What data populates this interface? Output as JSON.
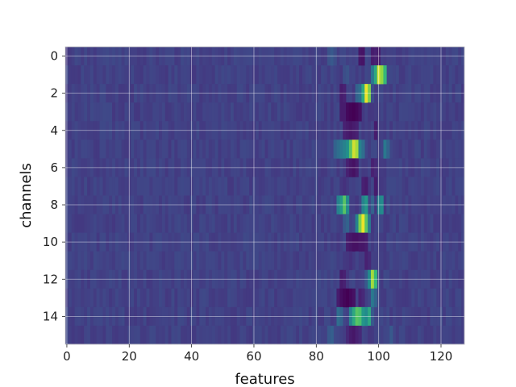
{
  "chart_data": {
    "type": "heatmap",
    "xlabel": "features",
    "ylabel": "channels",
    "x_ticks": [
      0,
      20,
      40,
      60,
      80,
      100,
      120
    ],
    "y_ticks": [
      0,
      2,
      4,
      6,
      8,
      10,
      12,
      14
    ],
    "x_range": [
      0,
      128
    ],
    "y_range": [
      0,
      16
    ],
    "grid": true,
    "colormap": "viridis",
    "background_color": "#3b528b",
    "value_range": [
      0,
      1
    ],
    "hot_cells": [
      {
        "channel": 0,
        "features": [
          [
            84,
            0.32
          ],
          [
            85,
            0.35
          ],
          [
            86,
            0.3
          ],
          [
            94,
            0.08
          ],
          [
            95,
            0.07
          ],
          [
            98,
            0.1
          ],
          [
            99,
            0.12
          ],
          [
            100,
            0.1
          ]
        ]
      },
      {
        "channel": 1,
        "features": [
          [
            89,
            0.3
          ],
          [
            90,
            0.32
          ],
          [
            98,
            0.5
          ],
          [
            99,
            0.7
          ],
          [
            100,
            0.95
          ],
          [
            101,
            0.88
          ],
          [
            102,
            0.75
          ]
        ]
      },
      {
        "channel": 2,
        "features": [
          [
            88,
            0.1
          ],
          [
            89,
            0.12
          ],
          [
            93,
            0.4
          ],
          [
            94,
            0.45
          ],
          [
            95,
            0.7
          ],
          [
            96,
            0.98
          ],
          [
            97,
            0.85
          ],
          [
            98,
            0.3
          ]
        ]
      },
      {
        "channel": 3,
        "features": [
          [
            88,
            0.1
          ],
          [
            89,
            0.1
          ],
          [
            90,
            0.03
          ],
          [
            91,
            0.01
          ],
          [
            92,
            0.0
          ],
          [
            93,
            0.02
          ],
          [
            94,
            0.06
          ],
          [
            97,
            0.2
          ]
        ]
      },
      {
        "channel": 4,
        "features": [
          [
            89,
            0.12
          ],
          [
            90,
            0.1
          ],
          [
            91,
            0.08
          ],
          [
            92,
            0.1
          ],
          [
            93,
            0.12
          ],
          [
            99,
            0.1
          ]
        ]
      },
      {
        "channel": 5,
        "features": [
          [
            86,
            0.4
          ],
          [
            87,
            0.45
          ],
          [
            88,
            0.5
          ],
          [
            89,
            0.55
          ],
          [
            90,
            0.62
          ],
          [
            91,
            0.8
          ],
          [
            92,
            0.95
          ],
          [
            93,
            0.9
          ],
          [
            94,
            0.55
          ],
          [
            95,
            0.45
          ],
          [
            102,
            0.5
          ],
          [
            103,
            0.4
          ]
        ]
      },
      {
        "channel": 6,
        "features": [
          [
            90,
            0.12
          ],
          [
            91,
            0.08
          ],
          [
            92,
            0.06
          ],
          [
            93,
            0.1
          ],
          [
            98,
            0.12
          ],
          [
            99,
            0.15
          ]
        ]
      },
      {
        "channel": 7,
        "features": [
          [
            88,
            0.2
          ],
          [
            89,
            0.18
          ],
          [
            95,
            0.12
          ],
          [
            96,
            0.1
          ],
          [
            99,
            0.1
          ]
        ]
      },
      {
        "channel": 8,
        "features": [
          [
            87,
            0.55
          ],
          [
            88,
            0.65
          ],
          [
            89,
            0.8
          ],
          [
            90,
            0.6
          ],
          [
            93,
            0.2
          ],
          [
            95,
            0.55
          ],
          [
            96,
            0.65
          ],
          [
            98,
            0.4
          ],
          [
            100,
            0.55
          ],
          [
            101,
            0.6
          ],
          [
            103,
            0.3
          ]
        ]
      },
      {
        "channel": 9,
        "features": [
          [
            89,
            0.35
          ],
          [
            90,
            0.4
          ],
          [
            93,
            0.55
          ],
          [
            94,
            0.85
          ],
          [
            95,
            0.98
          ],
          [
            96,
            0.8
          ],
          [
            97,
            0.5
          ],
          [
            98,
            0.2
          ]
        ]
      },
      {
        "channel": 10,
        "features": [
          [
            87,
            0.2
          ],
          [
            90,
            0.1
          ],
          [
            91,
            0.08
          ],
          [
            92,
            0.06
          ],
          [
            93,
            0.06
          ],
          [
            94,
            0.08
          ],
          [
            95,
            0.08
          ],
          [
            96,
            0.1
          ]
        ]
      },
      {
        "channel": 11,
        "features": [
          [
            90,
            0.2
          ],
          [
            91,
            0.18
          ],
          [
            93,
            0.25
          ],
          [
            96,
            0.12
          ],
          [
            97,
            0.15
          ]
        ]
      },
      {
        "channel": 12,
        "features": [
          [
            88,
            0.1
          ],
          [
            89,
            0.12
          ],
          [
            90,
            0.2
          ],
          [
            96,
            0.35
          ],
          [
            97,
            0.6
          ],
          [
            98,
            0.9
          ],
          [
            99,
            0.75
          ]
        ]
      },
      {
        "channel": 13,
        "features": [
          [
            87,
            0.1
          ],
          [
            88,
            0.05
          ],
          [
            89,
            0.02
          ],
          [
            90,
            0.0
          ],
          [
            91,
            0.03
          ],
          [
            92,
            0.06
          ],
          [
            94,
            0.12
          ],
          [
            95,
            0.15
          ],
          [
            98,
            0.5
          ],
          [
            99,
            0.4
          ]
        ]
      },
      {
        "channel": 14,
        "features": [
          [
            87,
            0.45
          ],
          [
            88,
            0.4
          ],
          [
            91,
            0.55
          ],
          [
            92,
            0.7
          ],
          [
            93,
            0.8
          ],
          [
            94,
            0.78
          ],
          [
            95,
            0.65
          ],
          [
            96,
            0.6
          ],
          [
            97,
            0.7
          ],
          [
            98,
            0.35
          ]
        ]
      },
      {
        "channel": 15,
        "features": [
          [
            84,
            0.35
          ],
          [
            85,
            0.38
          ],
          [
            90,
            0.15
          ],
          [
            91,
            0.1
          ],
          [
            92,
            0.08
          ],
          [
            93,
            0.12
          ],
          [
            94,
            0.15
          ],
          [
            97,
            0.2
          ],
          [
            104,
            0.35
          ]
        ]
      }
    ]
  }
}
